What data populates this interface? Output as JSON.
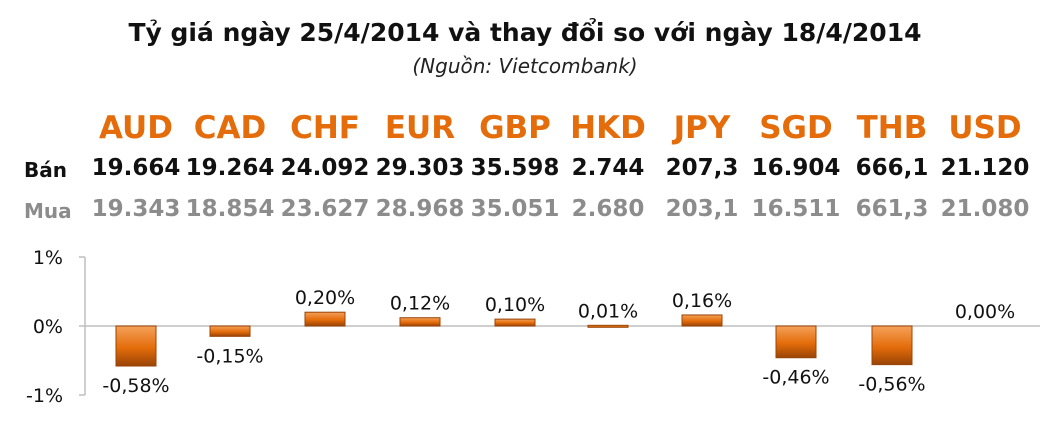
{
  "header": {
    "title": "Tỷ giá ngày 25/4/2014 và thay đổi so với ngày 18/4/2014",
    "source": "(Nguồn: Vietcombank)"
  },
  "table": {
    "sell_label": "Bán",
    "buy_label": "Mua",
    "currencies": [
      "AUD",
      "CAD",
      "CHF",
      "EUR",
      "GBP",
      "HKD",
      "JPY",
      "SGD",
      "THB",
      "USD"
    ],
    "sell": [
      "19.664",
      "19.264",
      "24.092",
      "29.303",
      "35.598",
      "2.744",
      "207,3",
      "16.904",
      "666,1",
      "21.120"
    ],
    "buy": [
      "19.343",
      "18.854",
      "23.627",
      "28.968",
      "35.051",
      "2.680",
      "203,1",
      "16.511",
      "661,3",
      "21.080"
    ]
  },
  "chart_data": {
    "type": "bar",
    "categories": [
      "AUD",
      "CAD",
      "CHF",
      "EUR",
      "GBP",
      "HKD",
      "JPY",
      "SGD",
      "THB",
      "USD"
    ],
    "values": [
      -0.58,
      -0.15,
      0.2,
      0.12,
      0.1,
      0.01,
      0.16,
      -0.46,
      -0.56,
      0.0
    ],
    "data_labels": [
      "-0,58%",
      "-0,15%",
      "0,20%",
      "0,12%",
      "0,10%",
      "0,01%",
      "0,16%",
      "-0,46%",
      "-0,56%",
      "0,00%"
    ],
    "ylim": [
      -1,
      1
    ],
    "ytick_values": [
      1,
      0,
      -1
    ],
    "ytick_labels": [
      "1%",
      "0%",
      "-1%"
    ],
    "title": "",
    "xlabel": "",
    "ylabel": "",
    "bar_color": "#e46c0a",
    "bar_dark_color": "#9a4407",
    "axis_color": "#bfbfbf"
  }
}
